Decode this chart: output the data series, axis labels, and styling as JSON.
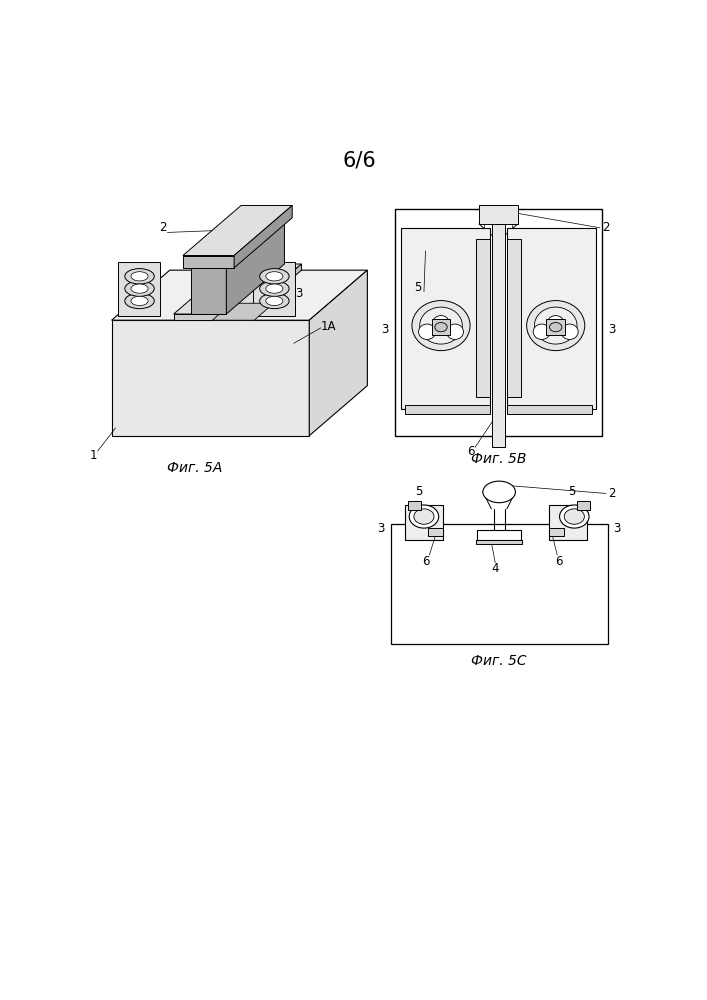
{
  "title": "6/6",
  "bg": "#ffffff",
  "lc": "#000000",
  "lw": 0.7,
  "fig5a_label": "Фиг. 5А",
  "fig5b_label": "Фиг. 5В",
  "fig5c_label": "Фиг. 5С",
  "label_fs": 10,
  "ann_fs": 8.5,
  "title_fs": 15
}
